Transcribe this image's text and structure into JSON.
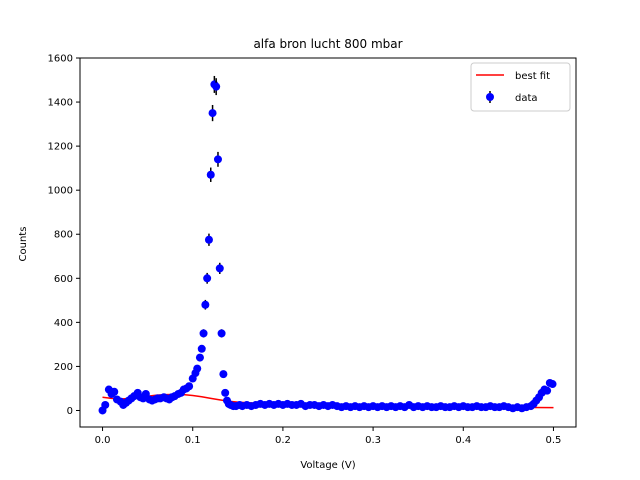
{
  "chart_data": {
    "type": "scatter",
    "title": "alfa bron lucht 800 mbar",
    "xlabel": "Voltage (V)",
    "ylabel": "Counts",
    "xlim": [
      -0.025,
      0.525
    ],
    "ylim": [
      -75,
      1600
    ],
    "xticks": [
      "0.0",
      "0.1",
      "0.2",
      "0.3",
      "0.4",
      "0.5"
    ],
    "xtick_values": [
      0.0,
      0.1,
      0.2,
      0.3,
      0.4,
      0.5
    ],
    "yticks": [
      "0",
      "200",
      "400",
      "600",
      "800",
      "1000",
      "1200",
      "1400",
      "1600"
    ],
    "ytick_values": [
      0,
      200,
      400,
      600,
      800,
      1000,
      1200,
      1400,
      1600
    ],
    "grid": false,
    "legend_position": "top-right",
    "colors": {
      "data": "#0000ff",
      "fit": "#ff0000",
      "errorbar": "#000000"
    },
    "series": [
      {
        "name": "data",
        "kind": "errorbar-scatter",
        "x": [
          0.0,
          0.003,
          0.007,
          0.01,
          0.013,
          0.016,
          0.02,
          0.023,
          0.026,
          0.029,
          0.032,
          0.035,
          0.039,
          0.042,
          0.045,
          0.048,
          0.052,
          0.055,
          0.058,
          0.061,
          0.064,
          0.068,
          0.071,
          0.074,
          0.077,
          0.08,
          0.084,
          0.087,
          0.09,
          0.093,
          0.096,
          0.1,
          0.103,
          0.105,
          0.108,
          0.11,
          0.112,
          0.114,
          0.116,
          0.118,
          0.12,
          0.122,
          0.124,
          0.126,
          0.128,
          0.13,
          0.132,
          0.134,
          0.136,
          0.138,
          0.14,
          0.142,
          0.145,
          0.148,
          0.152,
          0.155,
          0.16,
          0.165,
          0.17,
          0.175,
          0.18,
          0.185,
          0.19,
          0.195,
          0.2,
          0.205,
          0.21,
          0.215,
          0.22,
          0.225,
          0.23,
          0.235,
          0.24,
          0.245,
          0.25,
          0.255,
          0.26,
          0.265,
          0.27,
          0.275,
          0.28,
          0.285,
          0.29,
          0.295,
          0.3,
          0.305,
          0.31,
          0.315,
          0.32,
          0.325,
          0.33,
          0.335,
          0.34,
          0.345,
          0.35,
          0.355,
          0.36,
          0.365,
          0.37,
          0.375,
          0.38,
          0.385,
          0.39,
          0.395,
          0.4,
          0.405,
          0.41,
          0.415,
          0.42,
          0.425,
          0.43,
          0.435,
          0.44,
          0.445,
          0.45,
          0.455,
          0.46,
          0.465,
          0.47,
          0.475,
          0.478,
          0.481,
          0.484,
          0.487,
          0.49,
          0.493,
          0.496,
          0.499
        ],
        "y": [
          0,
          25,
          95,
          75,
          85,
          50,
          40,
          25,
          35,
          45,
          55,
          65,
          80,
          60,
          55,
          75,
          50,
          45,
          50,
          55,
          55,
          60,
          55,
          50,
          60,
          65,
          75,
          80,
          95,
          100,
          110,
          145,
          170,
          190,
          240,
          280,
          350,
          480,
          600,
          775,
          1070,
          1350,
          1480,
          1470,
          1140,
          645,
          350,
          165,
          80,
          45,
          30,
          25,
          20,
          20,
          25,
          20,
          25,
          20,
          25,
          30,
          25,
          30,
          25,
          30,
          25,
          30,
          25,
          25,
          30,
          20,
          25,
          25,
          20,
          25,
          20,
          25,
          20,
          15,
          20,
          15,
          20,
          15,
          20,
          15,
          20,
          15,
          20,
          15,
          20,
          15,
          20,
          15,
          25,
          15,
          20,
          15,
          20,
          15,
          15,
          20,
          15,
          15,
          20,
          15,
          20,
          15,
          15,
          20,
          15,
          15,
          20,
          15,
          15,
          20,
          15,
          10,
          15,
          10,
          15,
          20,
          30,
          45,
          60,
          80,
          95,
          90,
          125,
          120
        ],
        "yerr_note": "errorbar = sqrt(counts)"
      },
      {
        "name": "best fit",
        "kind": "line",
        "x": [
          0.0,
          0.01,
          0.02,
          0.03,
          0.04,
          0.05,
          0.06,
          0.07,
          0.08,
          0.09,
          0.1,
          0.11,
          0.12,
          0.13,
          0.14,
          0.15,
          0.17,
          0.2,
          0.25,
          0.3,
          0.35,
          0.4,
          0.45,
          0.5
        ],
        "y": [
          60,
          55,
          52,
          55,
          60,
          65,
          70,
          72,
          73,
          72,
          68,
          62,
          55,
          48,
          42,
          38,
          33,
          27,
          22,
          19,
          17,
          15,
          14,
          13
        ]
      }
    ]
  }
}
